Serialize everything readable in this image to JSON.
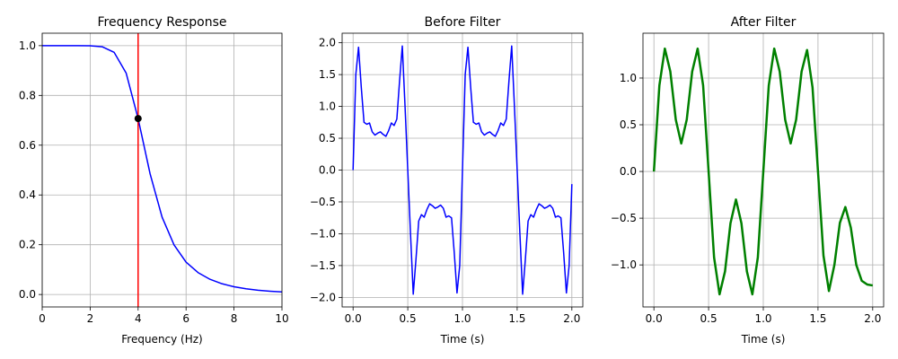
{
  "chart_data": [
    {
      "type": "line",
      "title": "Frequency Response",
      "xlabel": "Frequency (Hz)",
      "x": [
        0,
        0.5,
        1,
        1.5,
        2,
        2.5,
        3,
        3.5,
        4,
        4.5,
        5,
        5.5,
        6,
        6.5,
        7,
        7.5,
        8,
        8.5,
        9,
        9.5,
        10
      ],
      "values": [
        1.0,
        1.0,
        1.0,
        1.0,
        0.9995,
        0.9955,
        0.973,
        0.89,
        0.707,
        0.485,
        0.311,
        0.199,
        0.13,
        0.088,
        0.061,
        0.0432,
        0.0312,
        0.0231,
        0.0173,
        0.0133,
        0.0102
      ],
      "color": "#0000ff",
      "line_width": 1.5,
      "vline": {
        "x": 4,
        "color": "#ff0000"
      },
      "points": {
        "x": [
          4
        ],
        "y": [
          0.707
        ],
        "color": "#000000"
      },
      "xlim": [
        0,
        10
      ],
      "xticks": [
        0,
        2,
        4,
        6,
        8,
        10
      ],
      "ylim": [
        -0.05,
        1.05
      ],
      "yticks": [
        {
          "value": 0,
          "label": "0.0"
        },
        {
          "value": 0.2,
          "label": "0.2"
        },
        {
          "value": 0.4,
          "label": "0.4"
        },
        {
          "value": 0.6,
          "label": "0.6"
        },
        {
          "value": 0.8,
          "label": "0.8"
        },
        {
          "value": 1,
          "label": "1.0"
        }
      ],
      "grid": true
    },
    {
      "type": "line",
      "title": "Before Filter",
      "xlabel": "Time (s)",
      "x": [
        0,
        0.025,
        0.05,
        0.075,
        0.1,
        0.125,
        0.15,
        0.175,
        0.2,
        0.225,
        0.25,
        0.275,
        0.3,
        0.325,
        0.35,
        0.375,
        0.4,
        0.425,
        0.45,
        0.475,
        0.5,
        0.525,
        0.55,
        0.575,
        0.6,
        0.625,
        0.65,
        0.675,
        0.7,
        0.725,
        0.75,
        0.775,
        0.8,
        0.825,
        0.85,
        0.875,
        0.9,
        0.925,
        0.95,
        0.975,
        1.0,
        1.025,
        1.05,
        1.075,
        1.1,
        1.125,
        1.15,
        1.175,
        1.2,
        1.225,
        1.25,
        1.275,
        1.3,
        1.325,
        1.35,
        1.375,
        1.4,
        1.425,
        1.45,
        1.475,
        1.5,
        1.525,
        1.55,
        1.575,
        1.6,
        1.625,
        1.65,
        1.675,
        1.7,
        1.725,
        1.75,
        1.775,
        1.8,
        1.825,
        1.85,
        1.875,
        1.9,
        1.925,
        1.95,
        1.975,
        2.0
      ],
      "values": [
        0,
        1.5,
        1.93,
        1.3,
        0.75,
        0.72,
        0.74,
        0.6,
        0.55,
        0.58,
        0.6,
        0.56,
        0.53,
        0.62,
        0.74,
        0.7,
        0.8,
        1.4,
        1.95,
        1.0,
        0,
        -1.0,
        -1.95,
        -1.4,
        -0.8,
        -0.7,
        -0.74,
        -0.62,
        -0.53,
        -0.56,
        -0.6,
        -0.58,
        -0.55,
        -0.6,
        -0.74,
        -0.72,
        -0.75,
        -1.3,
        -1.93,
        -1.5,
        0,
        1.5,
        1.93,
        1.3,
        0.75,
        0.72,
        0.74,
        0.6,
        0.55,
        0.58,
        0.6,
        0.56,
        0.53,
        0.62,
        0.74,
        0.7,
        0.8,
        1.4,
        1.95,
        1.0,
        0,
        -1.0,
        -1.95,
        -1.4,
        -0.8,
        -0.7,
        -0.74,
        -0.62,
        -0.53,
        -0.56,
        -0.6,
        -0.58,
        -0.55,
        -0.6,
        -0.74,
        -0.72,
        -0.75,
        -1.3,
        -1.93,
        -1.5,
        -0.22
      ],
      "color": "#0000ff",
      "line_width": 1.5,
      "xlim": [
        -0.1,
        2.1
      ],
      "xticks": [
        {
          "value": 0,
          "label": "0.0"
        },
        {
          "value": 0.5,
          "label": "0.5"
        },
        {
          "value": 1,
          "label": "1.0"
        },
        {
          "value": 1.5,
          "label": "1.5"
        },
        {
          "value": 2,
          "label": "2.0"
        }
      ],
      "ylim": [
        -2.15,
        2.15
      ],
      "yticks": [
        {
          "value": -2,
          "label": "−2.0"
        },
        {
          "value": -1.5,
          "label": "−1.5"
        },
        {
          "value": -1,
          "label": "−1.0"
        },
        {
          "value": -0.5,
          "label": "−0.5"
        },
        {
          "value": 0,
          "label": "0.0"
        },
        {
          "value": 0.5,
          "label": "0.5"
        },
        {
          "value": 1,
          "label": "1.0"
        },
        {
          "value": 1.5,
          "label": "1.5"
        },
        {
          "value": 2,
          "label": "2.0"
        }
      ],
      "grid": true
    },
    {
      "type": "line",
      "title": "After Filter",
      "xlabel": "Time (s)",
      "x": [
        0,
        0.05,
        0.1,
        0.15,
        0.2,
        0.25,
        0.3,
        0.35,
        0.4,
        0.45,
        0.5,
        0.55,
        0.6,
        0.65,
        0.7,
        0.75,
        0.8,
        0.85,
        0.9,
        0.95,
        1.0,
        1.05,
        1.1,
        1.15,
        1.2,
        1.25,
        1.3,
        1.35,
        1.4,
        1.45,
        1.5,
        1.55,
        1.6,
        1.65,
        1.7,
        1.75,
        1.8,
        1.85,
        1.9,
        1.95,
        2.0
      ],
      "values": [
        0,
        0.92,
        1.315,
        1.07,
        0.554,
        0.3,
        0.554,
        1.07,
        1.315,
        0.92,
        0,
        -0.92,
        -1.315,
        -1.07,
        -0.554,
        -0.3,
        -0.554,
        -1.07,
        -1.315,
        -0.92,
        0,
        0.92,
        1.315,
        1.07,
        0.554,
        0.3,
        0.554,
        1.07,
        1.3,
        0.9,
        0,
        -0.9,
        -1.28,
        -1.0,
        -0.55,
        -0.38,
        -0.6,
        -1.0,
        -1.17,
        -1.21,
        -1.22
      ],
      "color": "#008000",
      "line_width": 2.5,
      "xlim": [
        -0.1,
        2.1
      ],
      "xticks": [
        {
          "value": 0,
          "label": "0.0"
        },
        {
          "value": 0.5,
          "label": "0.5"
        },
        {
          "value": 1,
          "label": "1.0"
        },
        {
          "value": 1.5,
          "label": "1.5"
        },
        {
          "value": 2,
          "label": "2.0"
        }
      ],
      "ylim": [
        -1.45,
        1.48
      ],
      "yticks": [
        {
          "value": -1,
          "label": "−1.0"
        },
        {
          "value": -0.5,
          "label": "−0.5"
        },
        {
          "value": 0,
          "label": "0.0"
        },
        {
          "value": 0.5,
          "label": "0.5"
        },
        {
          "value": 1,
          "label": "1.0"
        }
      ],
      "grid": true
    }
  ]
}
